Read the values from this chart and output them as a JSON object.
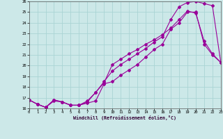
{
  "xlabel": "Windchill (Refroidissement éolien,°C)",
  "xlim": [
    0,
    23
  ],
  "ylim": [
    16,
    26
  ],
  "xticks": [
    0,
    1,
    2,
    3,
    4,
    5,
    6,
    7,
    8,
    9,
    10,
    11,
    12,
    13,
    14,
    15,
    16,
    17,
    18,
    19,
    20,
    21,
    22,
    23
  ],
  "yticks": [
    16,
    17,
    18,
    19,
    20,
    21,
    22,
    23,
    24,
    25,
    26
  ],
  "bg_color": "#cce8e8",
  "line_color": "#990099",
  "grid_color": "#aad4d4",
  "line1_x": [
    0,
    1,
    2,
    3,
    4,
    5,
    6,
    7,
    8,
    9,
    10,
    11,
    12,
    13,
    14,
    15,
    16,
    17,
    18,
    19,
    20,
    21,
    22,
    23
  ],
  "line1_y": [
    16.8,
    16.4,
    16.1,
    16.8,
    16.6,
    16.3,
    16.3,
    16.5,
    16.7,
    18.3,
    18.5,
    19.1,
    19.6,
    20.1,
    20.8,
    21.5,
    22.0,
    23.4,
    24.0,
    25.0,
    25.0,
    22.0,
    21.0,
    20.3
  ],
  "line2_x": [
    0,
    1,
    2,
    3,
    4,
    5,
    6,
    7,
    8,
    9,
    10,
    11,
    12,
    13,
    14,
    15,
    16,
    17,
    18,
    19,
    20,
    21,
    22,
    23
  ],
  "line2_y": [
    16.8,
    16.4,
    16.1,
    16.7,
    16.6,
    16.3,
    16.3,
    16.7,
    17.5,
    18.4,
    20.1,
    20.6,
    21.1,
    21.5,
    22.0,
    22.4,
    22.9,
    23.5,
    24.3,
    25.1,
    24.9,
    22.3,
    21.1,
    20.3
  ],
  "line3_x": [
    0,
    1,
    2,
    3,
    4,
    5,
    6,
    7,
    8,
    9,
    10,
    11,
    12,
    13,
    14,
    15,
    16,
    17,
    18,
    19,
    20,
    21,
    22,
    23
  ],
  "line3_y": [
    16.8,
    16.4,
    16.1,
    16.8,
    16.6,
    16.3,
    16.3,
    16.6,
    17.5,
    18.5,
    19.5,
    20.1,
    20.6,
    21.1,
    21.6,
    22.2,
    22.7,
    24.3,
    25.5,
    25.9,
    26.0,
    25.8,
    25.6,
    20.3
  ]
}
